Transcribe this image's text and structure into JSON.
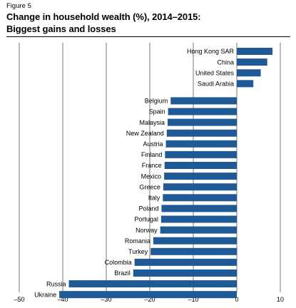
{
  "figure_label": "Figure 5",
  "title_line1": "Change in household wealth (%), 2014–2015:",
  "title_line2": "Biggest gains and losses",
  "colors": {
    "bar": "#1f5a96",
    "grid": "#555555"
  },
  "chart_data": {
    "type": "bar",
    "orientation": "horizontal",
    "title": "Change in household wealth (%), 2014–2015: Biggest gains and losses",
    "xlabel": "",
    "ylabel": "",
    "xlim": [
      -50,
      10
    ],
    "xticks": [
      -50,
      -40,
      -30,
      -20,
      -10,
      0,
      10
    ],
    "xtick_labels": [
      "–50",
      "–40",
      "–30",
      "–20",
      "–10",
      "0",
      "10"
    ],
    "grid": true,
    "groups": [
      {
        "categories": [
          "Hong Kong SAR",
          "China",
          "United States",
          "Saudi Arabia"
        ],
        "values": [
          8.2,
          7.0,
          5.5,
          3.8
        ]
      },
      {
        "categories": [
          "Belgium",
          "Spain",
          "Malaysia",
          "New Zealand",
          "Austria",
          "Finland",
          "France",
          "Mexico",
          "Greece",
          "Italy",
          "Poland",
          "Portugal",
          "Norway",
          "Romania",
          "Turkey",
          "Colombia",
          "Brazil",
          "Russia",
          "Ukraine"
        ],
        "values": [
          -15.2,
          -15.8,
          -15.9,
          -16.1,
          -16.3,
          -16.5,
          -16.6,
          -16.7,
          -16.9,
          -17.0,
          -17.3,
          -17.4,
          -17.6,
          -19.2,
          -19.8,
          -23.5,
          -23.8,
          -38.6,
          -40.8
        ]
      }
    ]
  }
}
